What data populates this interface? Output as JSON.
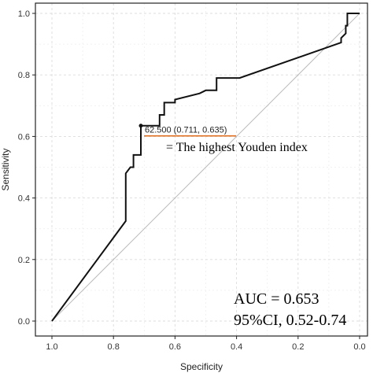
{
  "chart_data": {
    "type": "line",
    "title": "",
    "xlabel": "Specificity",
    "ylabel": "Sensitivity",
    "xlim": [
      1.0,
      0.0
    ],
    "ylim": [
      0.0,
      1.0
    ],
    "x_reversed": true,
    "xticks": [
      1.0,
      0.8,
      0.6,
      0.4,
      0.2,
      0.0
    ],
    "xtick_labels": [
      "1.0",
      "0.8",
      "0.6",
      "0.4",
      "0.2",
      "0.0"
    ],
    "yticks": [
      0.0,
      0.2,
      0.4,
      0.6,
      0.8,
      1.0
    ],
    "ytick_labels": [
      "0.0",
      "0.2",
      "0.4",
      "0.6",
      "0.8",
      "1.0"
    ],
    "grid": true,
    "series": [
      {
        "role": "roc-curve",
        "color": "#111111",
        "points": [
          [
            1.0,
            0.0
          ],
          [
            0.76,
            0.325
          ],
          [
            0.76,
            0.48
          ],
          [
            0.745,
            0.5
          ],
          [
            0.735,
            0.5
          ],
          [
            0.735,
            0.54
          ],
          [
            0.711,
            0.54
          ],
          [
            0.711,
            0.635
          ],
          [
            0.65,
            0.635
          ],
          [
            0.65,
            0.67
          ],
          [
            0.635,
            0.67
          ],
          [
            0.635,
            0.71
          ],
          [
            0.6,
            0.71
          ],
          [
            0.6,
            0.72
          ],
          [
            0.52,
            0.74
          ],
          [
            0.5,
            0.75
          ],
          [
            0.465,
            0.75
          ],
          [
            0.465,
            0.79
          ],
          [
            0.39,
            0.79
          ],
          [
            0.06,
            0.905
          ],
          [
            0.06,
            0.92
          ],
          [
            0.045,
            0.935
          ],
          [
            0.045,
            0.96
          ],
          [
            0.04,
            0.96
          ],
          [
            0.04,
            1.0
          ],
          [
            0.0,
            1.0
          ]
        ]
      },
      {
        "role": "reference-diagonal",
        "color": "#bbbbbb",
        "points": [
          [
            1.0,
            0.0
          ],
          [
            0.0,
            1.0
          ]
        ]
      }
    ],
    "highlight_point": {
      "x": 0.711,
      "y": 0.635,
      "label": "62.500 (0.711, 0.635)",
      "underline_color": "#e07020"
    },
    "annotations": {
      "youden": "= The highest Youden index",
      "auc": "AUC = 0.653",
      "ci": "95%CI, 0.52-0.74"
    }
  }
}
